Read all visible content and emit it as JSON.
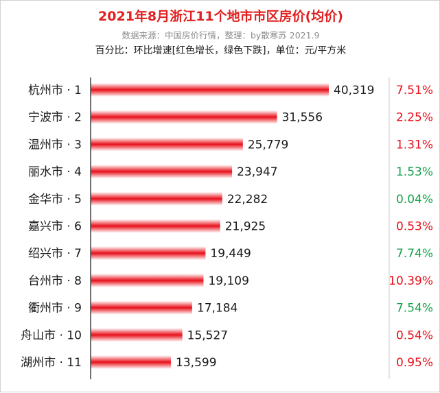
{
  "chart_data": {
    "type": "bar",
    "orientation": "horizontal",
    "title": "2021年8月浙江11个地市市区房价(均价)",
    "subtitle": "数据来源：中国房价行情，整理：by散寒苏  2021.9",
    "note": "百分比：环比增速[红色增长，绿色下跌]，单位：元/平方米",
    "categories": [
      "杭州市 · 1",
      "宁波市 · 2",
      "温州市 · 3",
      "丽水市 · 4",
      "金华市 · 5",
      "嘉兴市 · 6",
      "绍兴市 · 7",
      "台州市 · 8",
      "衢州市 · 9",
      "舟山市 · 10",
      "湖州市 · 11"
    ],
    "values": [
      40319,
      31556,
      25779,
      23947,
      22282,
      21925,
      19449,
      19109,
      17184,
      15527,
      13599
    ],
    "value_labels": [
      "40,319",
      "31,556",
      "25,779",
      "23,947",
      "22,282",
      "21,925",
      "19,449",
      "19,109",
      "17,184",
      "15,527",
      "13,599"
    ],
    "mom_growth": [
      "7.51%",
      "2.25%",
      "1.31%",
      "1.53%",
      "0.04%",
      "0.53%",
      "7.74%",
      "10.39%",
      "7.54%",
      "0.54%",
      "0.95%"
    ],
    "mom_direction": [
      "up",
      "up",
      "up",
      "down",
      "down",
      "up",
      "down",
      "up",
      "down",
      "up",
      "up"
    ],
    "xlim": [
      0,
      40319
    ],
    "grid": false,
    "legend": "none"
  },
  "colors": {
    "title": "#e02020",
    "bar": "#e8101a",
    "growth_up": "#e8101a",
    "growth_down": "#15a24a",
    "axis": "#404040",
    "divider": "#c9c9c9"
  }
}
